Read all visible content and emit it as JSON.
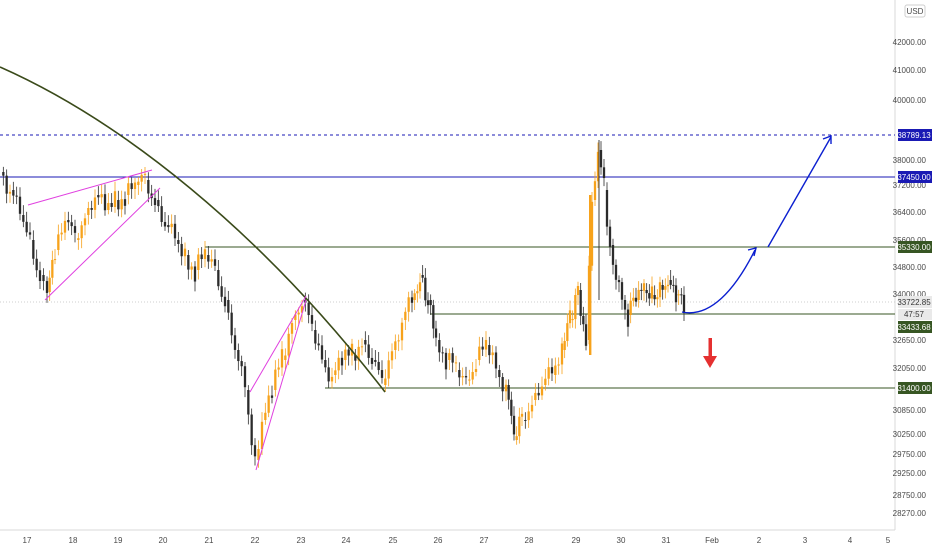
{
  "chart_data": {
    "type": "candlestick",
    "currency_badge": "USD",
    "y_ticks": [
      42000,
      41000,
      40000,
      38000,
      37200,
      36400,
      35600,
      34800,
      34000,
      32650,
      32050,
      30850,
      30250,
      29750,
      29250,
      28750,
      28270
    ],
    "x_ticks": [
      "17",
      "18",
      "19",
      "20",
      "21",
      "22",
      "23",
      "24",
      "25",
      "26",
      "27",
      "28",
      "29",
      "30",
      "31",
      "Feb",
      "2",
      "3",
      "4",
      "5"
    ],
    "price_labels": [
      {
        "text": "38789.13",
        "kind": "dashed-resistance",
        "color": "#1a1ab4"
      },
      {
        "text": "37450.00",
        "kind": "level",
        "color": "#1a1ab4"
      },
      {
        "text": "35330.00",
        "kind": "level",
        "color": "#375623"
      },
      {
        "text": "33722.85",
        "kind": "last",
        "color": "#ffffff"
      },
      {
        "text": "47:57",
        "kind": "countdown",
        "color": "#ffffff"
      },
      {
        "text": "33433.68",
        "kind": "level",
        "color": "#375623"
      },
      {
        "text": "31400.00",
        "kind": "level",
        "color": "#375623"
      }
    ],
    "candle_color_up": "#f7a21b",
    "candle_color_down": "#2b2b2b",
    "curve_color": "#3a4a1a",
    "wedge_color": "#e040e0",
    "projection_color": "#0b1fd0",
    "arrow_color": "#e53030",
    "grid": false
  }
}
